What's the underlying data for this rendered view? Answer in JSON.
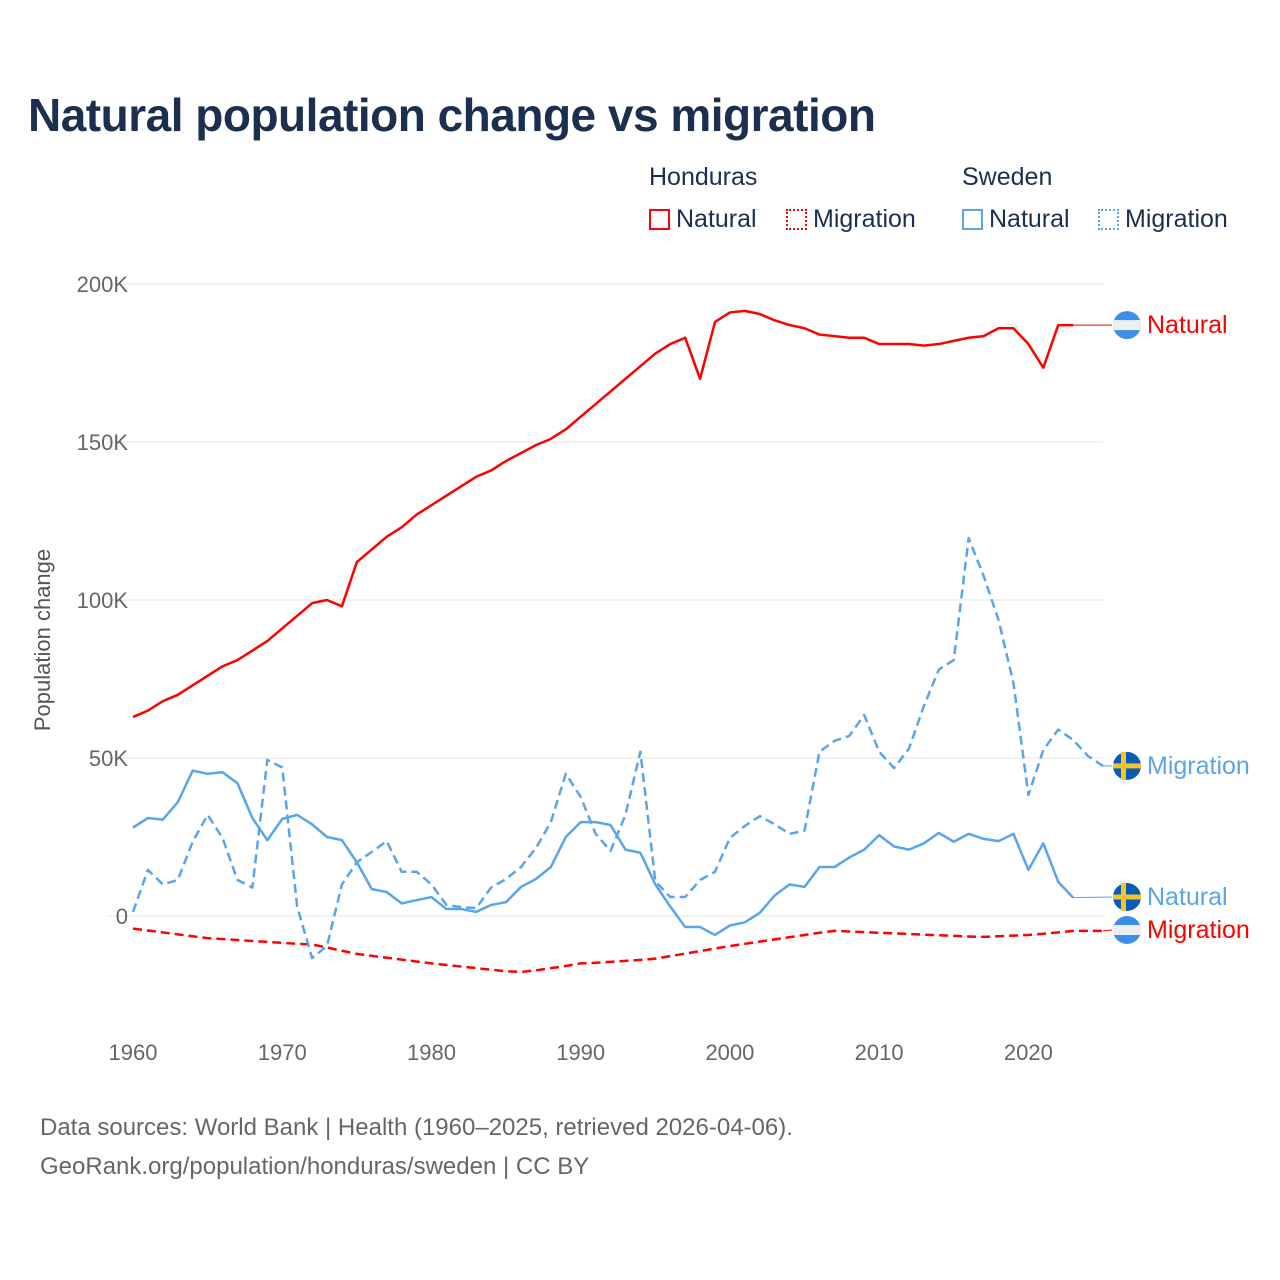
{
  "title": "Natural population change vs migration",
  "legend": {
    "groups": [
      {
        "name": "Honduras",
        "items": [
          "Natural",
          "Migration"
        ],
        "color": "#ff0000"
      },
      {
        "name": "Sweden",
        "items": [
          "Natural",
          "Migration"
        ],
        "color": "#5aa4eb"
      }
    ]
  },
  "footer": {
    "line1": "Data sources: World Bank | Health (1960–2025, retrieved 2026-04-06).",
    "line2": "GeoRank.org/population/honduras/sweden | CC BY"
  },
  "chart_data": {
    "type": "line",
    "title": "Natural population change vs migration",
    "xlabel": "",
    "ylabel": "Population change",
    "xlim": [
      1960,
      2025
    ],
    "ylim": [
      -30000,
      200000
    ],
    "x_ticks": [
      "1960",
      "1970",
      "1980",
      "1990",
      "2000",
      "2010",
      "2020"
    ],
    "y_ticks": [
      {
        "v": 0,
        "label": "0"
      },
      {
        "v": 50000,
        "label": "50K"
      },
      {
        "v": 100000,
        "label": "100K"
      },
      {
        "v": 150000,
        "label": "150K"
      },
      {
        "v": 200000,
        "label": "200K"
      }
    ],
    "grid": true,
    "series": [
      {
        "name": "Honduras Natural",
        "country": "Honduras",
        "kind": "Natural",
        "color": "#ff0000",
        "dash": "solid",
        "end_label": "Natural",
        "start": 1960,
        "values": [
          63,
          65,
          68,
          70,
          73,
          76,
          79,
          81,
          84,
          87,
          91,
          95,
          99,
          100,
          98,
          112,
          116,
          120,
          123,
          127,
          130,
          133,
          136,
          139,
          141,
          144,
          146.5,
          149,
          151,
          154,
          158,
          162,
          166,
          170,
          174,
          178,
          181,
          183,
          170,
          188,
          191,
          191.5,
          190.5,
          188.5,
          187,
          186,
          184,
          183.5,
          183,
          183,
          181,
          181,
          181,
          180.5,
          181,
          182,
          183,
          183.5,
          186,
          186,
          181,
          173.5,
          187,
          187
        ]
      },
      {
        "name": "Honduras Migration",
        "country": "Honduras",
        "kind": "Migration",
        "color": "#ff0000",
        "dash": "dashed",
        "end_label": "Migration",
        "start": 1960,
        "values": [
          -4,
          -4.6,
          -5.2,
          -5.8,
          -6.4,
          -7,
          -7.3,
          -7.6,
          -7.9,
          -8.2,
          -8.5,
          -8.8,
          -9,
          -10,
          -11,
          -12,
          -12.6,
          -13.2,
          -13.8,
          -14.4,
          -15,
          -15.5,
          -16,
          -16.5,
          -17,
          -17.5,
          -17.7,
          -17.2,
          -16.5,
          -15.8,
          -15,
          -14.8,
          -14.5,
          -14.2,
          -13.9,
          -13.5,
          -12.7,
          -11.9,
          -11.1,
          -10.3,
          -9.5,
          -8.8,
          -8.1,
          -7.4,
          -6.7,
          -6,
          -5.3,
          -4.7,
          -4.9,
          -5.1,
          -5.3,
          -5.5,
          -5.7,
          -5.9,
          -6.1,
          -6.3,
          -6.5,
          -6.6,
          -6.4,
          -6.2,
          -6,
          -5.6,
          -5.2,
          -4.7,
          -4.7,
          -4.7
        ]
      },
      {
        "name": "Sweden Natural",
        "country": "Sweden",
        "kind": "Natural",
        "color": "#5aa4eb",
        "dash": "solid",
        "end_label": "Natural",
        "start": 1960,
        "values": [
          28,
          31,
          30.5,
          36,
          46,
          45,
          45.5,
          42,
          31,
          24,
          30.7,
          32,
          29,
          25,
          24,
          17,
          8.5,
          7.6,
          4,
          5,
          6,
          2.2,
          2.2,
          1.3,
          3.5,
          4.4,
          9.2,
          11.7,
          15.5,
          25,
          29.7,
          29.7,
          28.8,
          21,
          20,
          10,
          3,
          -3.5,
          -3.5,
          -6,
          -3,
          -2,
          1,
          6.5,
          10,
          9.2,
          15.5,
          15.5,
          18.5,
          21,
          25.6,
          22,
          21,
          23,
          26.3,
          23.5,
          26,
          24.4,
          23.7,
          26,
          14.6,
          23,
          10.8,
          5.8
        ]
      },
      {
        "name": "Sweden Migration",
        "country": "Sweden",
        "kind": "Migration",
        "color": "#5aa4eb",
        "dash": "dashed",
        "end_label": "Migration",
        "start": 1960,
        "values": [
          1.3,
          14.6,
          10,
          11.4,
          23.5,
          32,
          24.7,
          11.4,
          9,
          49.4,
          47,
          3,
          -13.3,
          -9.5,
          10,
          17,
          20.3,
          23.7,
          14,
          14,
          10,
          3.5,
          2.8,
          2.5,
          9,
          11.7,
          15.5,
          21.5,
          29.7,
          45,
          37.7,
          26,
          20.6,
          32,
          52,
          11,
          6,
          6,
          11.4,
          14,
          24.7,
          28.5,
          31.6,
          29,
          26,
          27,
          52,
          55.4,
          57,
          63.6,
          52,
          46.8,
          53,
          66.5,
          78,
          81,
          119.6,
          107.6,
          93.7,
          73.7,
          38.3,
          52.5,
          59,
          55.7,
          50.6,
          47.5
        ]
      }
    ],
    "value_unit": "thousands"
  }
}
